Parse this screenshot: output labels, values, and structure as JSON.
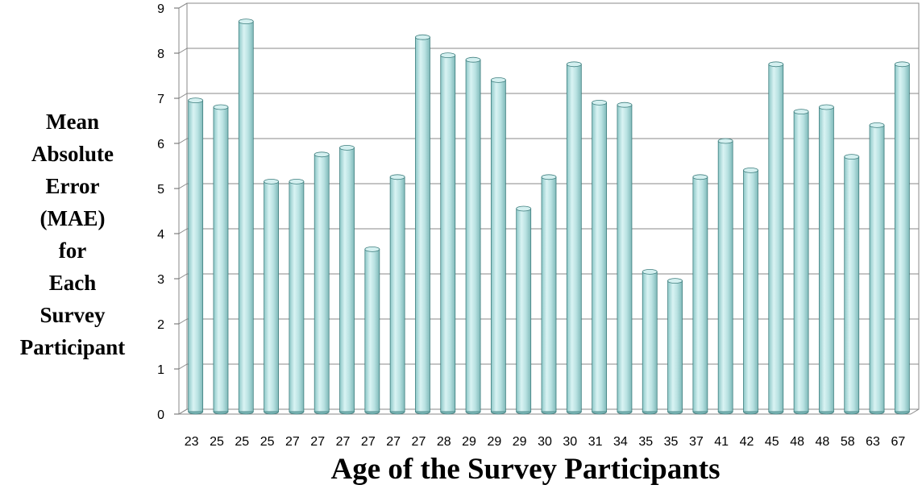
{
  "chart_data": {
    "type": "bar",
    "style": "3d-cylinder",
    "bar_color": "#a8dada",
    "bar_top_color": "#d4f0f0",
    "bar_edge_color": "#3f7f7f",
    "grid": true,
    "xlabel": "Age of the Survey Participants",
    "ylabel": "Mean Absolute Error (MAE) for Each Survey Participant",
    "ylabel_lines": [
      "Mean",
      "Absolute",
      "Error",
      "(MAE)",
      "for",
      "Each",
      "Survey",
      "Participant"
    ],
    "ylim": [
      0,
      9
    ],
    "yticks": [
      "0",
      "1",
      "2",
      "3",
      "4",
      "5",
      "6",
      "7",
      "8",
      "9"
    ],
    "categories": [
      "23",
      "25",
      "25",
      "25",
      "27",
      "27",
      "27",
      "27",
      "27",
      "27",
      "28",
      "29",
      "29",
      "29",
      "30",
      "30",
      "31",
      "34",
      "35",
      "35",
      "37",
      "41",
      "42",
      "45",
      "48",
      "48",
      "58",
      "63",
      "67"
    ],
    "values": [
      6.9,
      6.75,
      8.65,
      5.1,
      5.1,
      5.7,
      5.85,
      3.6,
      5.2,
      8.3,
      7.9,
      7.8,
      7.35,
      4.5,
      5.2,
      7.7,
      6.85,
      6.8,
      3.1,
      2.9,
      5.2,
      6.0,
      5.35,
      7.7,
      6.65,
      6.75,
      5.65,
      6.35,
      7.7
    ]
  }
}
